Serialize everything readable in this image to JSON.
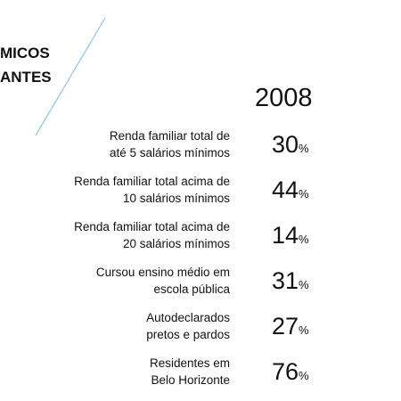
{
  "header": {
    "title_lines": [
      "MICOS",
      "ANTES"
    ]
  },
  "year": "2008",
  "unit": "%",
  "rows": [
    {
      "lines": [
        "Renda familiar total de",
        "até 5 salários mínimos"
      ],
      "value": 30
    },
    {
      "lines": [
        "Renda familiar total acima de",
        "10 salários mínimos"
      ],
      "value": 44
    },
    {
      "lines": [
        "Renda familiar total acima de",
        "20 salários mínimos"
      ],
      "value": 14
    },
    {
      "lines": [
        "Cursou ensino médio em",
        "escola pública"
      ],
      "value": 31
    },
    {
      "lines": [
        "Autodeclarados",
        "pretos e pardos"
      ],
      "value": 27
    },
    {
      "lines": [
        "Residentes em",
        "Belo Horizonte"
      ],
      "value": 76
    }
  ]
}
